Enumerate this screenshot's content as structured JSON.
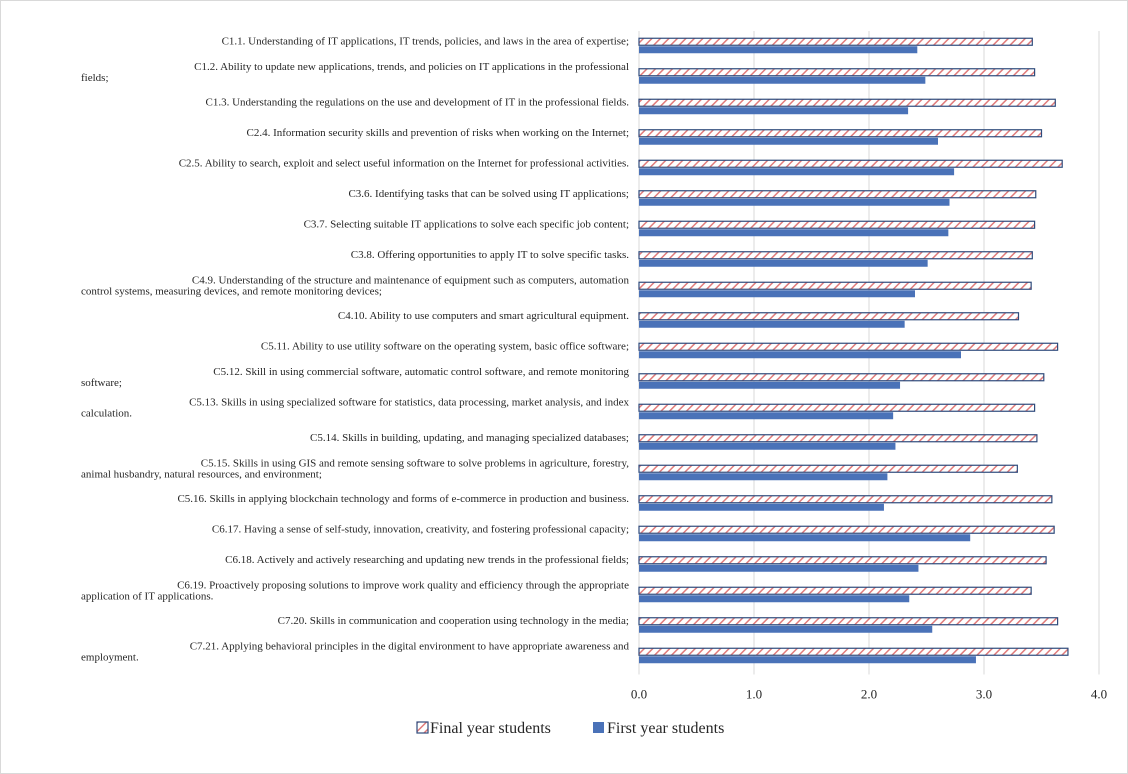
{
  "chart_data": {
    "type": "bar",
    "orientation": "horizontal",
    "categories": [
      "C1.1. Understanding of IT applications, IT trends, policies, and laws in the area of expertise;",
      "C1.2. Ability to update new applications, trends, and policies on IT applications in the professional fields;",
      "C1.3. Understanding the regulations on the use and development of IT in the professional fields.",
      "C2.4. Information security skills and prevention of risks when working on the Internet;",
      "C2.5. Ability to search, exploit and select useful information on the Internet for professional activities.",
      "C3.6. Identifying tasks that can be solved using IT applications;",
      "C3.7. Selecting suitable IT applications to solve each specific job content;",
      "C3.8. Offering opportunities to apply IT to solve specific tasks.",
      "C4.9. Understanding of the structure and maintenance of equipment such as computers, automation control systems, measuring devices, and remote monitoring devices;",
      "C4.10. Ability to use computers and smart agricultural equipment.",
      "C5.11. Ability to use utility software on the operating system, basic office software;",
      "C5.12. Skill in using commercial software, automatic control software, and remote monitoring software;",
      "C5.13. Skills in using specialized software for statistics, data processing, market analysis, and index calculation.",
      "C5.14. Skills in building, updating, and managing specialized databases;",
      "C5.15. Skills in using GIS and remote sensing software to solve problems in agriculture, forestry, animal husbandry, natural resources, and environment;",
      "C5.16. Skills in applying blockchain technology and forms of e-commerce in production and business.",
      "C6.17. Having a sense of self-study, innovation, creativity, and fostering professional capacity;",
      "C6.18. Actively and actively researching and updating new trends in the professional fields;",
      "C6.19. Proactively proposing solutions to improve work quality and efficiency through the appropriate application of IT applications.",
      "C7.20. Skills in communication and cooperation using technology in the media;",
      "C7.21. Applying behavioral principles in the digital environment to have appropriate awareness and employment."
    ],
    "label_lines": [
      [
        "C1.1. Understanding of IT applications, IT trends, policies, and laws in the area of expertise;"
      ],
      [
        "C1.2. Ability to update new applications, trends, and policies on IT applications in the professional",
        "fields;"
      ],
      [
        "C1.3. Understanding the regulations on the use and development of IT in the professional fields."
      ],
      [
        "C2.4. Information security skills and prevention of risks when working on the Internet;"
      ],
      [
        "C2.5. Ability to search, exploit and select useful information on the Internet for professional activities."
      ],
      [
        "C3.6. Identifying tasks that can be solved using IT applications;"
      ],
      [
        "C3.7. Selecting suitable IT applications to solve each specific job content;"
      ],
      [
        "C3.8. Offering opportunities to apply IT to solve specific tasks."
      ],
      [
        "C4.9. Understanding of the structure and maintenance of equipment such as computers, automation",
        "control systems, measuring devices, and remote monitoring devices;"
      ],
      [
        "C4.10. Ability to use computers and smart agricultural equipment."
      ],
      [
        "C5.11. Ability to use utility software on the operating system, basic office software;"
      ],
      [
        "C5.12. Skill in using commercial software, automatic control software, and remote monitoring",
        "software;"
      ],
      [
        "C5.13. Skills in using specialized software for statistics, data processing, market analysis, and index",
        "calculation."
      ],
      [
        "C5.14. Skills in building, updating, and managing specialized databases;"
      ],
      [
        "C5.15. Skills in using GIS and remote sensing software to solve problems in agriculture, forestry,",
        "animal husbandry, natural resources, and environment;"
      ],
      [
        "C5.16. Skills in applying blockchain technology and forms of e-commerce in production and business."
      ],
      [
        "C6.17. Having a sense of self-study, innovation, creativity, and fostering professional capacity;"
      ],
      [
        "C6.18. Actively and actively researching and updating new trends in the professional fields;"
      ],
      [
        "C6.19. Proactively proposing solutions to improve work quality and efficiency through the appropriate",
        "application of IT applications."
      ],
      [
        "C7.20. Skills in communication and cooperation using technology in the media;"
      ],
      [
        "C7.21. Applying behavioral principles in the digital environment to have appropriate awareness and",
        "employment."
      ]
    ],
    "series": [
      {
        "name": "Final year students",
        "pattern": "diagonal-hatch",
        "color": "#e07b7b",
        "border_color": "#2f4b7c",
        "values": [
          3.42,
          3.44,
          3.62,
          3.5,
          3.68,
          3.45,
          3.44,
          3.42,
          3.41,
          3.3,
          3.64,
          3.52,
          3.44,
          3.46,
          3.29,
          3.59,
          3.61,
          3.54,
          3.41,
          3.64,
          3.73
        ]
      },
      {
        "name": "First year students",
        "pattern": "solid",
        "color": "#4a72b8",
        "values": [
          2.42,
          2.49,
          2.34,
          2.6,
          2.74,
          2.7,
          2.69,
          2.51,
          2.4,
          2.31,
          2.8,
          2.27,
          2.21,
          2.23,
          2.16,
          2.13,
          2.88,
          2.43,
          2.35,
          2.55,
          2.93
        ]
      }
    ],
    "xlim": [
      0,
      4
    ],
    "x_ticks": [
      "0.0",
      "1.0",
      "2.0",
      "3.0",
      "4.0"
    ],
    "grid": "vertical",
    "legend_position": "bottom"
  }
}
